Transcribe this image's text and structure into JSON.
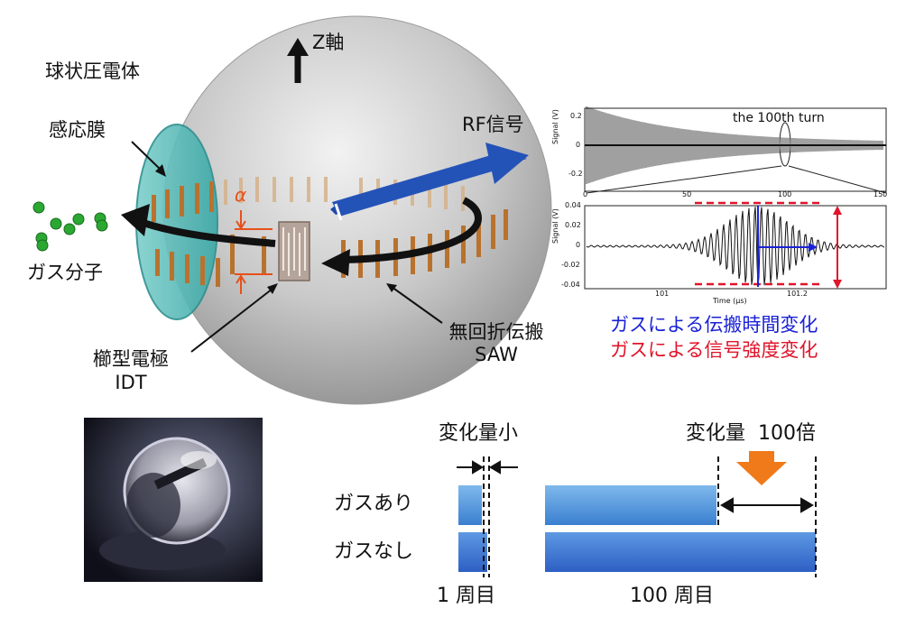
{
  "sphere_diagram": {
    "title_label": "球状圧電体",
    "z_axis_label": "Z軸",
    "membrane_label": "感応膜",
    "rf_label": "RF信号",
    "alpha_label": "α",
    "gas_label": "ガス分子",
    "saw_label_line1": "無回折伝搬",
    "saw_label_line2": "SAW",
    "idt_label_line1": "櫛型電極",
    "idt_label_line2": "IDT"
  },
  "waveform_plots": {
    "top": {
      "annotation": "the 100th turn",
      "y_ticks": [
        "0.2",
        "0",
        "-0.2"
      ],
      "x_ticks": [
        "0",
        "50",
        "100",
        "150"
      ],
      "y_axis_label": "Signal (V)"
    },
    "bottom": {
      "y_ticks": [
        "0.04",
        "0.02",
        "0",
        "-0.02",
        "-0.04"
      ],
      "x_ticks": [
        "101",
        "101.2"
      ],
      "x_axis_label": "Time (μs)",
      "y_axis_label": "Signal (V)"
    }
  },
  "legend": {
    "blue_line": "ガスによる伝搬時間変化",
    "red_line": "ガスによる信号強度変化",
    "blue_color": "#1a22d6",
    "red_color": "#e0142a"
  },
  "comparison": {
    "small_change_label": "変化量小",
    "big_change_label": "変化量  100倍",
    "row_with_gas": "ガスあり",
    "row_without_gas": "ガスなし",
    "turn1_label": "1 周目",
    "turn100_label": "100 周目",
    "arrow_color": "#f07a1a"
  }
}
